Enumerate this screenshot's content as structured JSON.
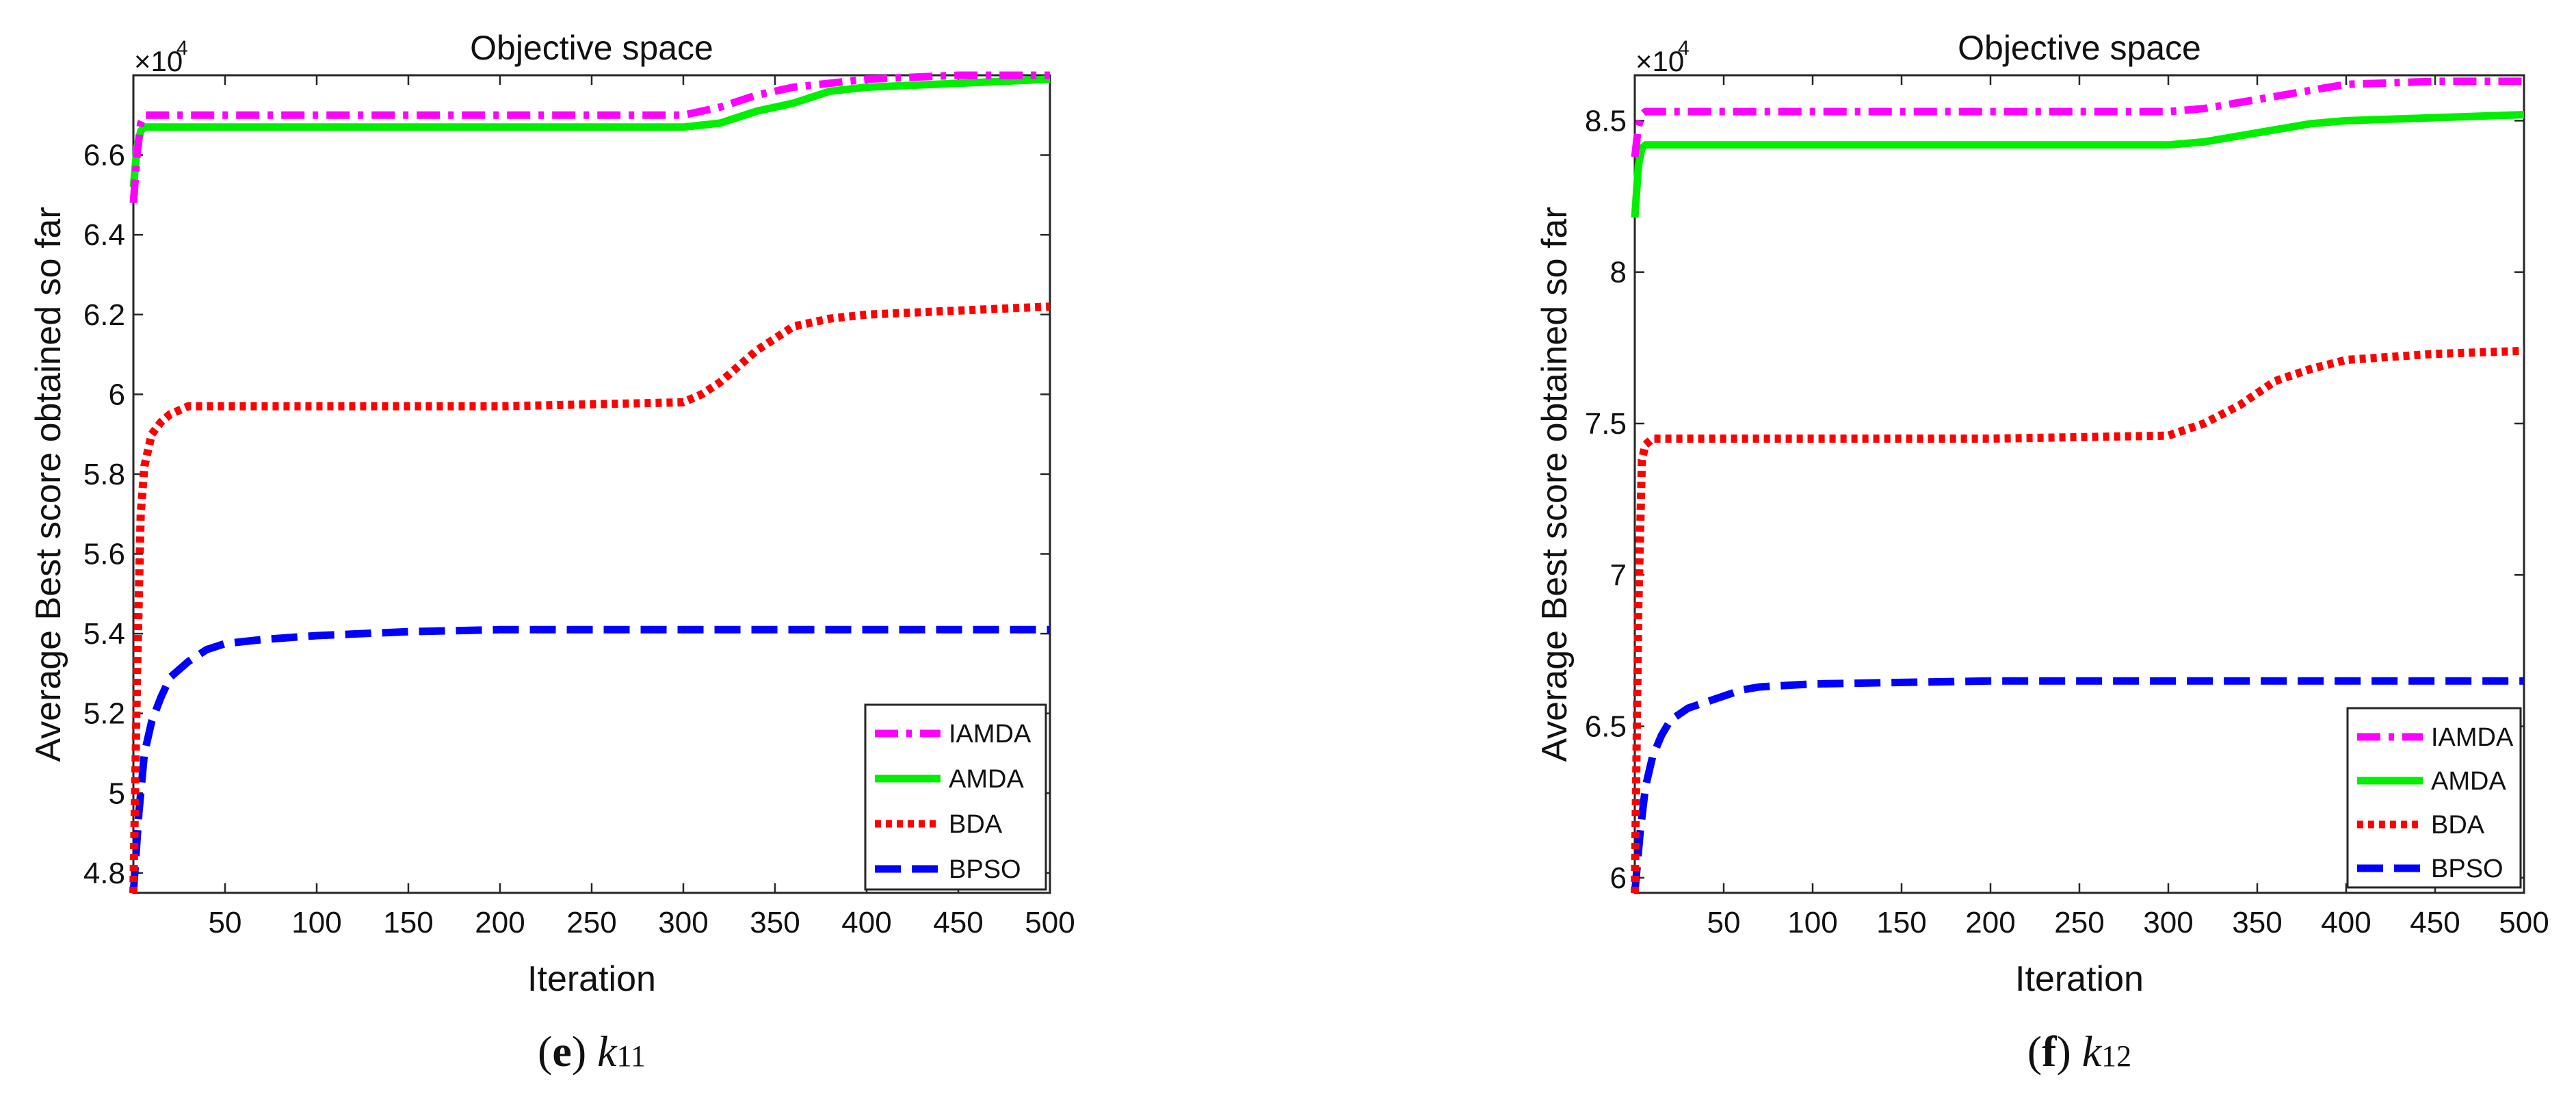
{
  "chart_data": [
    {
      "type": "line",
      "title": "Objective space",
      "xlabel": "Iteration",
      "ylabel": "Average Best score obtained so far",
      "xlim": [
        0,
        500
      ],
      "ylim": [
        4.75,
        6.8
      ],
      "xticks": [
        50,
        100,
        150,
        200,
        250,
        300,
        350,
        400,
        450,
        500
      ],
      "yticks": [
        4.8,
        5,
        5.2,
        5.4,
        5.6,
        5.8,
        6,
        6.2,
        6.4,
        6.6
      ],
      "multiplier_base": "×10",
      "multiplier_exp": "4",
      "caption": {
        "open": "(",
        "letter": "e",
        "close": ")",
        "var": "k",
        "sub": "11"
      },
      "legend_position": "bottom-right",
      "series": [
        {
          "name": "IAMDA",
          "color": "#ff00ff",
          "style": "dashdot",
          "x": [
            0,
            2,
            4,
            6,
            10,
            20,
            50,
            100,
            200,
            300,
            320,
            340,
            360,
            400,
            450,
            500
          ],
          "y": [
            6.48,
            6.6,
            6.68,
            6.7,
            6.7,
            6.7,
            6.7,
            6.7,
            6.7,
            6.7,
            6.72,
            6.75,
            6.77,
            6.79,
            6.8,
            6.8
          ]
        },
        {
          "name": "AMDA",
          "color": "#00ee00",
          "style": "solid",
          "x": [
            0,
            2,
            4,
            6,
            10,
            20,
            50,
            100,
            200,
            300,
            320,
            340,
            360,
            380,
            400,
            450,
            500
          ],
          "y": [
            6.52,
            6.62,
            6.66,
            6.67,
            6.67,
            6.67,
            6.67,
            6.67,
            6.67,
            6.67,
            6.68,
            6.71,
            6.73,
            6.76,
            6.77,
            6.78,
            6.79
          ]
        },
        {
          "name": "BDA",
          "color": "#ff0000",
          "style": "dotted",
          "x": [
            0,
            2,
            4,
            6,
            10,
            15,
            20,
            30,
            50,
            100,
            200,
            300,
            310,
            320,
            330,
            340,
            350,
            360,
            380,
            400,
            450,
            500
          ],
          "y": [
            4.75,
            5.3,
            5.7,
            5.82,
            5.9,
            5.93,
            5.95,
            5.97,
            5.97,
            5.97,
            5.97,
            5.98,
            6.0,
            6.03,
            6.07,
            6.11,
            6.14,
            6.17,
            6.19,
            6.2,
            6.21,
            6.22
          ]
        },
        {
          "name": "BPSO",
          "color": "#0000ff",
          "style": "dashed",
          "x": [
            0,
            3,
            6,
            10,
            15,
            20,
            30,
            40,
            50,
            70,
            100,
            150,
            200,
            300,
            400,
            500
          ],
          "y": [
            4.75,
            4.95,
            5.1,
            5.18,
            5.24,
            5.29,
            5.33,
            5.36,
            5.375,
            5.385,
            5.395,
            5.405,
            5.41,
            5.41,
            5.41,
            5.41
          ]
        }
      ]
    },
    {
      "type": "line",
      "title": "Objective space",
      "xlabel": "Iteration",
      "ylabel": "Average Best score obtained so far",
      "xlim": [
        0,
        500
      ],
      "ylim": [
        5.95,
        8.65
      ],
      "xticks": [
        50,
        100,
        150,
        200,
        250,
        300,
        350,
        400,
        450,
        500
      ],
      "yticks": [
        6,
        6.5,
        7,
        7.5,
        8,
        8.5
      ],
      "multiplier_base": "×10",
      "multiplier_exp": "4",
      "caption": {
        "open": "(",
        "letter": "f",
        "close": ")",
        "var": "k",
        "sub": "12"
      },
      "legend_position": "bottom-right",
      "series": [
        {
          "name": "IAMDA",
          "color": "#ff00ff",
          "style": "dashdot",
          "x": [
            0,
            2,
            4,
            6,
            10,
            20,
            50,
            100,
            200,
            300,
            320,
            340,
            360,
            380,
            400,
            450,
            500
          ],
          "y": [
            8.38,
            8.48,
            8.52,
            8.53,
            8.53,
            8.53,
            8.53,
            8.53,
            8.53,
            8.53,
            8.54,
            8.56,
            8.58,
            8.6,
            8.62,
            8.63,
            8.63
          ]
        },
        {
          "name": "AMDA",
          "color": "#00ee00",
          "style": "solid",
          "x": [
            0,
            2,
            4,
            6,
            10,
            20,
            50,
            100,
            200,
            300,
            320,
            340,
            360,
            380,
            400,
            450,
            500
          ],
          "y": [
            8.18,
            8.35,
            8.41,
            8.42,
            8.42,
            8.42,
            8.42,
            8.42,
            8.42,
            8.42,
            8.43,
            8.45,
            8.47,
            8.49,
            8.5,
            8.51,
            8.52
          ]
        },
        {
          "name": "BDA",
          "color": "#ff0000",
          "style": "dotted",
          "x": [
            0,
            2,
            4,
            6,
            10,
            20,
            50,
            100,
            200,
            300,
            310,
            320,
            330,
            340,
            350,
            360,
            380,
            400,
            450,
            500
          ],
          "y": [
            5.95,
            6.9,
            7.38,
            7.43,
            7.45,
            7.45,
            7.45,
            7.45,
            7.45,
            7.46,
            7.48,
            7.5,
            7.53,
            7.56,
            7.6,
            7.64,
            7.68,
            7.71,
            7.73,
            7.74
          ]
        },
        {
          "name": "BPSO",
          "color": "#0000ff",
          "style": "dashed",
          "x": [
            0,
            3,
            6,
            10,
            15,
            20,
            30,
            40,
            50,
            60,
            70,
            100,
            150,
            200,
            300,
            400,
            500
          ],
          "y": [
            5.95,
            6.15,
            6.3,
            6.4,
            6.47,
            6.52,
            6.56,
            6.58,
            6.6,
            6.62,
            6.63,
            6.64,
            6.645,
            6.65,
            6.65,
            6.65,
            6.65
          ]
        }
      ]
    }
  ]
}
